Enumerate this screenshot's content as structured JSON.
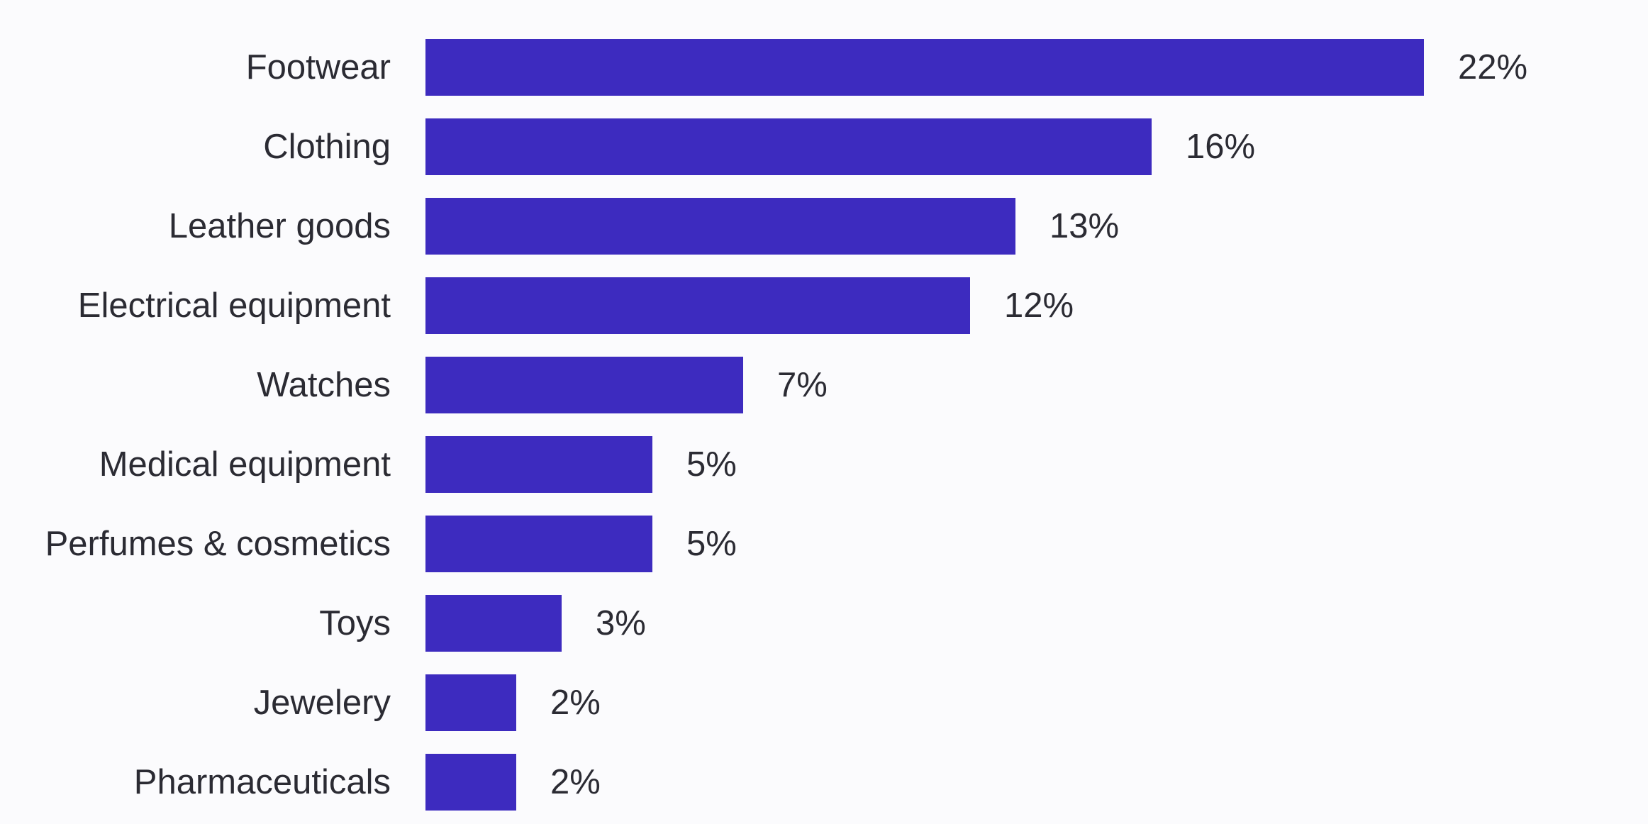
{
  "chart_data": {
    "type": "bar",
    "orientation": "horizontal",
    "title": "",
    "xlabel": "",
    "ylabel": "",
    "categories": [
      "Footwear",
      "Clothing",
      "Leather goods",
      "Electrical equipment",
      "Watches",
      "Medical equipment",
      "Perfumes & cosmetics",
      "Toys",
      "Jewelery",
      "Pharmaceuticals"
    ],
    "values": [
      22,
      16,
      13,
      12,
      7,
      5,
      5,
      3,
      2,
      2
    ],
    "value_labels": [
      "22%",
      "16%",
      "13%",
      "12%",
      "7%",
      "5%",
      "5%",
      "3%",
      "2%",
      "2%"
    ],
    "unit": "%",
    "xlim": [
      0,
      22
    ],
    "grid": false,
    "legend": "none",
    "colors": {
      "bar": "#3d2bbf",
      "text": "#2b2b33",
      "background": "#fbfbfd"
    }
  }
}
